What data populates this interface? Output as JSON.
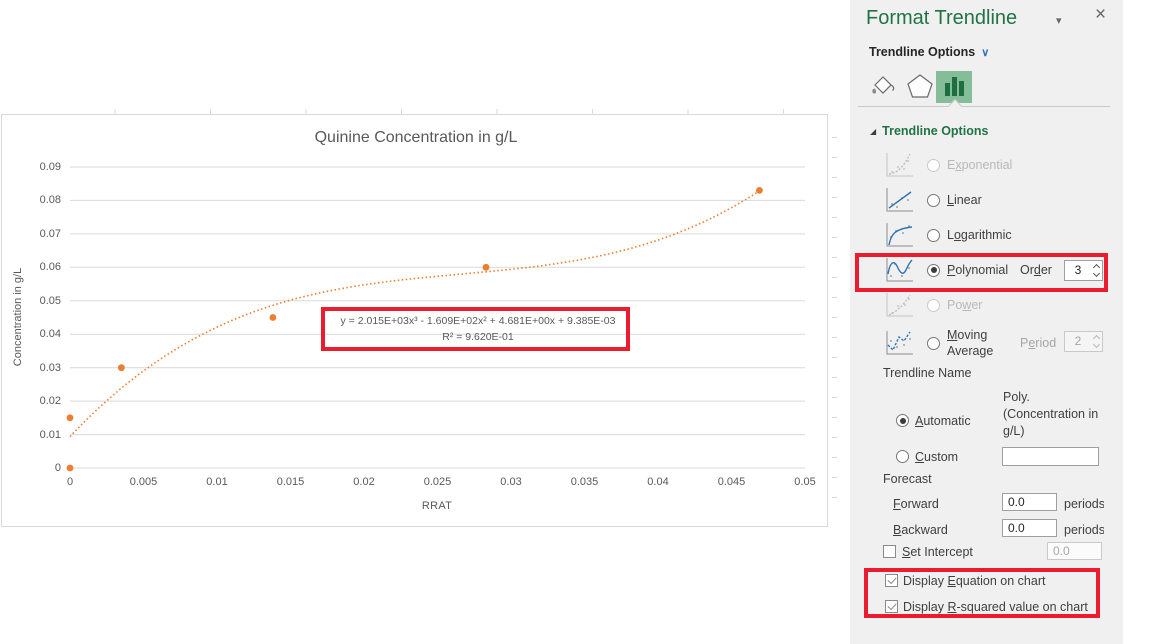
{
  "chart_data": {
    "type": "scatter",
    "title": "Quinine Concentration in g/L",
    "xlabel": "RRAT",
    "ylabel": "Concentration in g/L",
    "xlim": [
      0,
      0.05
    ],
    "ylim": [
      0,
      0.09
    ],
    "x_ticks": [
      "0",
      "0.005",
      "0.01",
      "0.015",
      "0.02",
      "0.025",
      "0.03",
      "0.035",
      "0.04",
      "0.045",
      "0.05"
    ],
    "y_ticks": [
      "0",
      "0.01",
      "0.02",
      "0.03",
      "0.04",
      "0.05",
      "0.06",
      "0.07",
      "0.08",
      "0.09"
    ],
    "grid": true,
    "legend": false,
    "series": [
      {
        "name": "Concentration in g/L",
        "marker": "circle",
        "color": "#ED7D31",
        "points": [
          [
            0,
            0
          ],
          [
            0,
            0.015
          ],
          [
            0.0035,
            0.03
          ],
          [
            0.0138,
            0.045
          ],
          [
            0.0283,
            0.06
          ],
          [
            0.0469,
            0.083
          ]
        ]
      }
    ],
    "trendline": {
      "kind": "polynomial",
      "order": 3,
      "coefficients_desc": [
        2015,
        -160.9,
        4.681,
        0.009385
      ],
      "x_range": [
        0,
        0.047
      ],
      "line_style": "dotted",
      "color": "#ED7D31"
    },
    "equation_label": "y = 2.015E+03x³ - 1.609E+02x² + 4.681E+00x + 9.385E-03",
    "r_squared_label": "R² = 9.620E-01",
    "gridline_color": "#D9D9D9",
    "text_color": "#595959"
  },
  "annotations": {
    "highlight_color": "#EA1C2D",
    "boxes": [
      "equation-label",
      "polynomial-order-row",
      "display-checkboxes"
    ]
  },
  "panel": {
    "title": "Format Trendline",
    "header_menu": "Trendline Options",
    "accent_green": "#217346",
    "icons": {
      "window": [
        "chevron-down-icon",
        "close-icon"
      ],
      "tabs": [
        "paint-bucket-icon",
        "pentagon-icon",
        "bar-chart-icon"
      ]
    },
    "section": "Trendline Options",
    "options": [
      {
        "id": "exponential",
        "pre": "E",
        "key": "x",
        "post": "ponential",
        "state": "disabled"
      },
      {
        "id": "linear",
        "pre": "",
        "key": "L",
        "post": "inear",
        "state": "normal"
      },
      {
        "id": "logarithmic",
        "pre": "L",
        "key": "o",
        "post": "garithmic",
        "state": "normal"
      },
      {
        "id": "polynomial",
        "pre": "",
        "key": "P",
        "post": "olynomial",
        "state": "selected",
        "field": {
          "pre": "Or",
          "key": "d",
          "post": "er",
          "value": "3",
          "disabled": false
        }
      },
      {
        "id": "power",
        "pre": "Po",
        "key": "w",
        "post": "er",
        "state": "disabled"
      },
      {
        "id": "moving-average",
        "pre": "",
        "key": "M",
        "post": "oving Average",
        "state": "normal",
        "field": {
          "pre": "P",
          "key": "e",
          "post": "riod",
          "value": "2",
          "disabled": true
        }
      }
    ],
    "trendline_name": {
      "label": "Trendline Name",
      "automatic": {
        "key": "A",
        "post": "utomatic",
        "selected": true,
        "value": "Poly. (Concentration in g/L)"
      },
      "custom": {
        "key": "C",
        "post": "ustom",
        "selected": false,
        "value": ""
      }
    },
    "forecast": {
      "label": "Forecast",
      "forward": {
        "key": "F",
        "post": "orward",
        "value": "0.0",
        "unit": "periods"
      },
      "backward": {
        "key": "B",
        "post": "ackward",
        "value": "0.0",
        "unit": "periods"
      }
    },
    "set_intercept": {
      "key": "S",
      "post": "et Intercept",
      "checked": false,
      "value": "0.0"
    },
    "display_equation": {
      "pre": "Display ",
      "key": "E",
      "post": "quation on chart",
      "checked": true
    },
    "display_r2": {
      "pre": "Display ",
      "key": "R",
      "post": "-squared value on chart",
      "checked": true
    }
  }
}
